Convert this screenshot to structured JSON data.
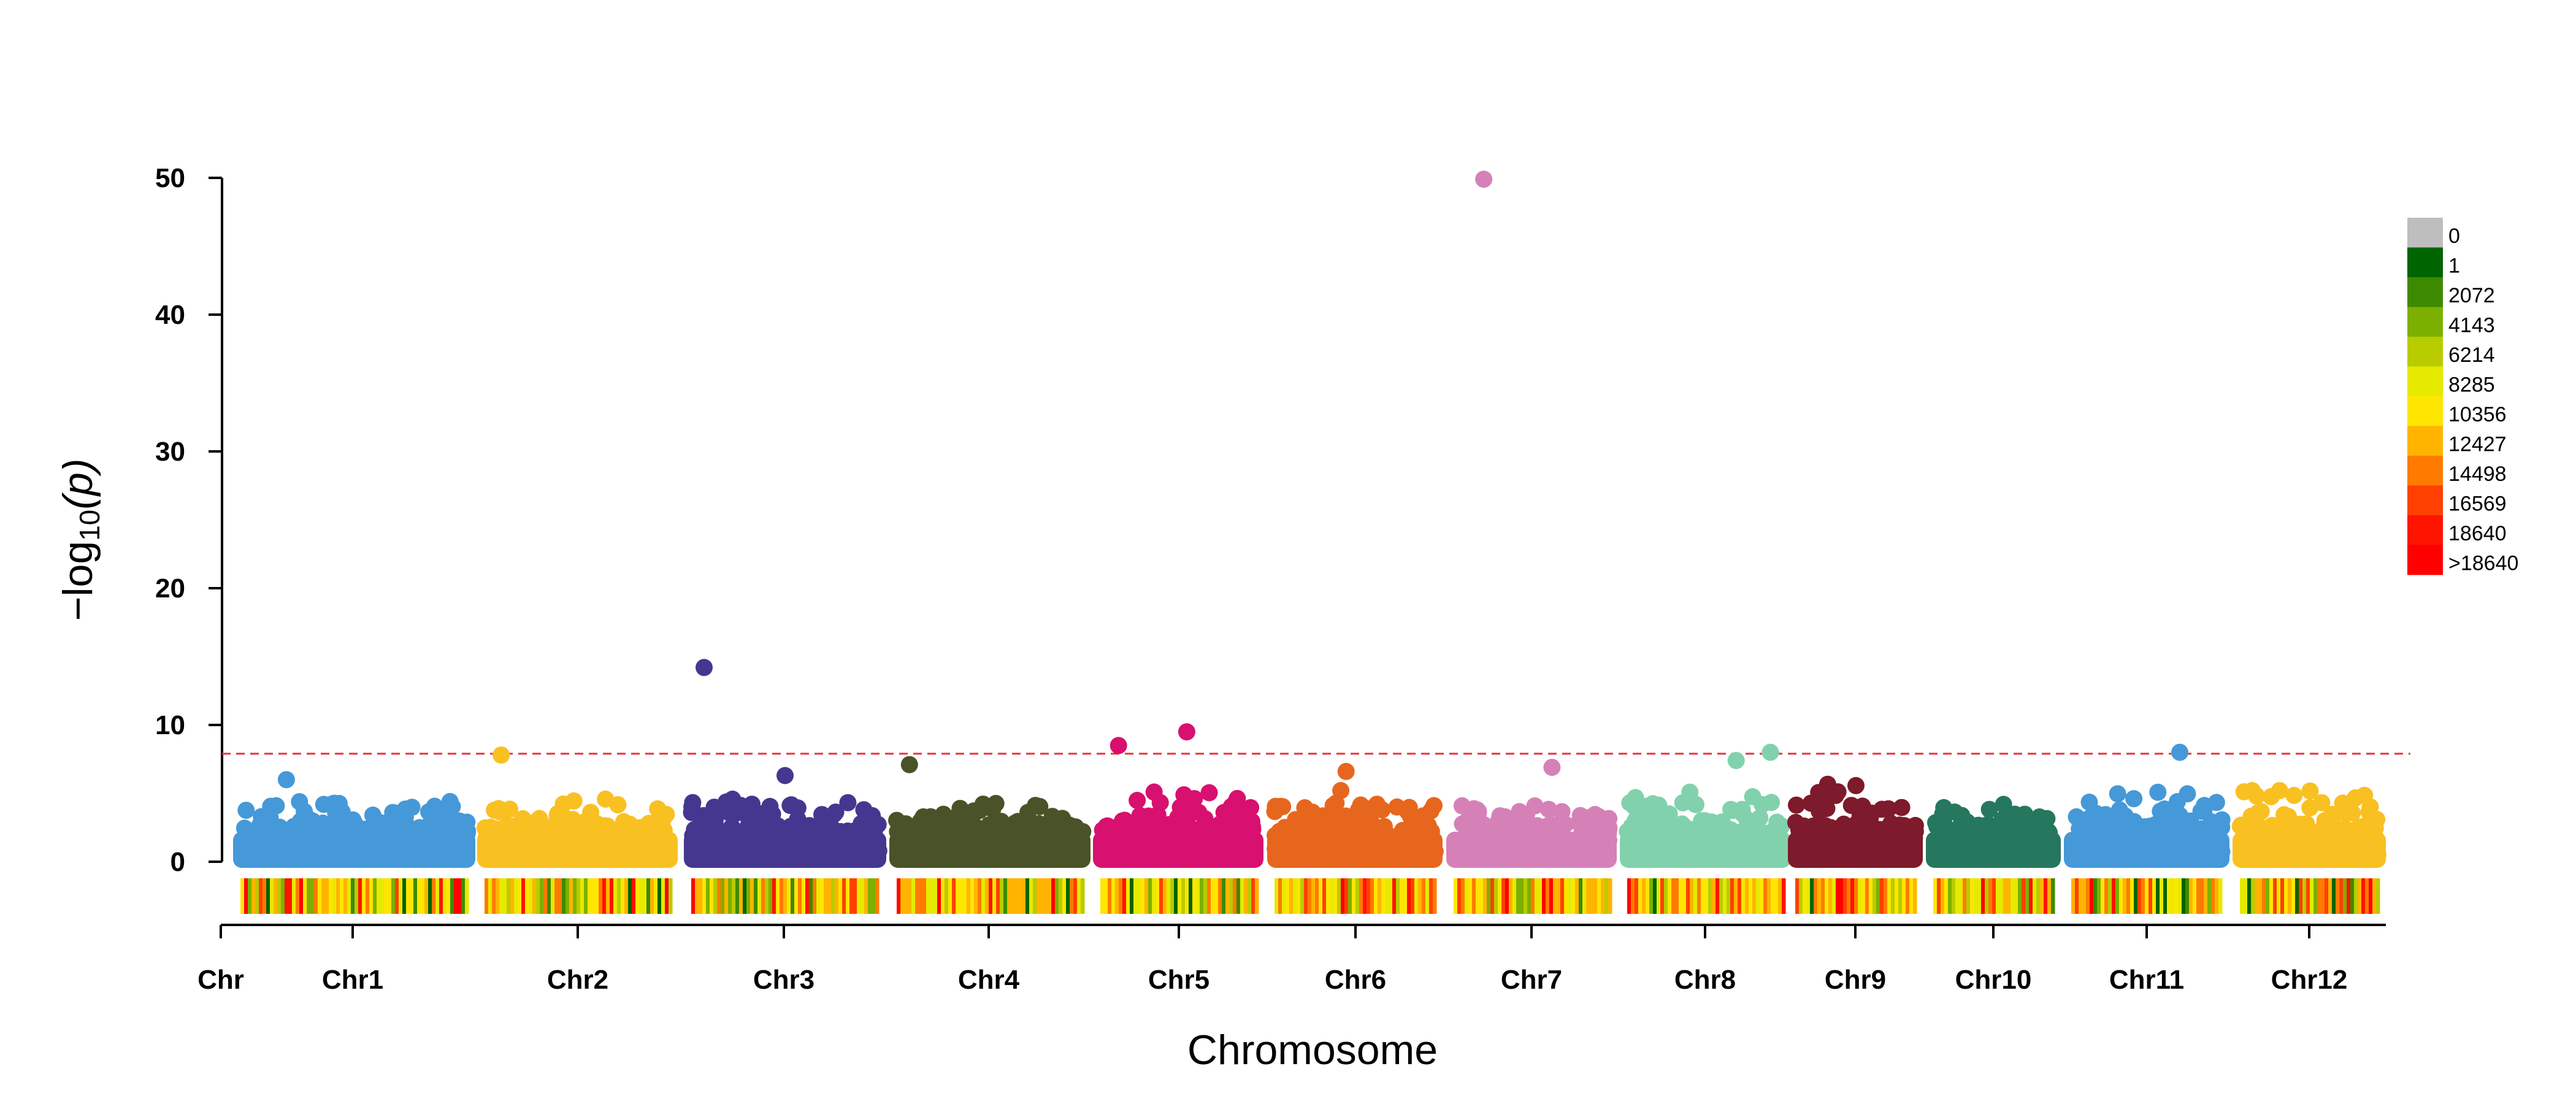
{
  "chart_data": {
    "type": "scatter",
    "subtype": "manhattan",
    "title": "",
    "xlabel": "Chromosome",
    "ylabel_prefix": "−log",
    "ylabel_sub": "10",
    "ylabel_var": "(p)",
    "ylim": [
      0,
      50
    ],
    "yticks": [
      0,
      10,
      20,
      30,
      40,
      50
    ],
    "threshold": 7.9,
    "threshold_color": "#e8343a",
    "threshold_style": "dashed",
    "x_axis_first_label": "Chr",
    "grid": false,
    "chromosomes": [
      {
        "name": "Chr1",
        "color": "#4599d8",
        "baseline_max": 4.6,
        "peaks": [
          {
            "pos": 0.22,
            "y": 6.0
          }
        ]
      },
      {
        "name": "Chr2",
        "color": "#f9c022",
        "baseline_max": 4.6,
        "peaks": [
          {
            "pos": 0.12,
            "y": 7.8
          }
        ]
      },
      {
        "name": "Chr3",
        "color": "#45378f",
        "baseline_max": 4.6,
        "peaks": [
          {
            "pos": 0.1,
            "y": 14.2
          },
          {
            "pos": 0.5,
            "y": 6.3
          }
        ]
      },
      {
        "name": "Chr4",
        "color": "#4a5327",
        "baseline_max": 4.4,
        "peaks": [
          {
            "pos": 0.1,
            "y": 7.1
          }
        ]
      },
      {
        "name": "Chr5",
        "color": "#d8106f",
        "baseline_max": 5.2,
        "peaks": [
          {
            "pos": 0.15,
            "y": 8.5
          },
          {
            "pos": 0.55,
            "y": 9.5
          }
        ]
      },
      {
        "name": "Chr6",
        "color": "#e7661e",
        "baseline_max": 4.3,
        "peaks": [
          {
            "pos": 0.45,
            "y": 6.6
          },
          {
            "pos": 0.42,
            "y": 5.2
          }
        ]
      },
      {
        "name": "Chr7",
        "color": "#d581b8",
        "baseline_max": 4.1,
        "peaks": [
          {
            "pos": 0.22,
            "y": 49.9
          },
          {
            "pos": 0.62,
            "y": 6.9
          }
        ]
      },
      {
        "name": "Chr8",
        "color": "#82d1ad",
        "baseline_max": 5.2,
        "peaks": [
          {
            "pos": 0.68,
            "y": 7.4
          },
          {
            "pos": 0.88,
            "y": 8.0
          }
        ]
      },
      {
        "name": "Chr9",
        "color": "#7d1a2b",
        "baseline_max": 5.9,
        "peaks": []
      },
      {
        "name": "Chr10",
        "color": "#25775d",
        "baseline_max": 4.2,
        "peaks": []
      },
      {
        "name": "Chr11",
        "color": "#4599d8",
        "baseline_max": 5.2,
        "peaks": [
          {
            "pos": 0.7,
            "y": 8.0
          }
        ]
      },
      {
        "name": "Chr12",
        "color": "#f9c022",
        "baseline_max": 5.3,
        "peaks": []
      }
    ],
    "density_legend": {
      "labels": [
        "0",
        "1",
        "2072",
        "4143",
        "6214",
        "8285",
        "10356",
        "12427",
        "14498",
        "16569",
        "18640",
        ">18640"
      ],
      "colors": [
        "#bebebe",
        "#006400",
        "#3d8a00",
        "#7cb000",
        "#b8cc00",
        "#e6ea00",
        "#ffe600",
        "#ffb400",
        "#ff7b00",
        "#ff4000",
        "#ff1400",
        "#ff0000"
      ]
    }
  }
}
